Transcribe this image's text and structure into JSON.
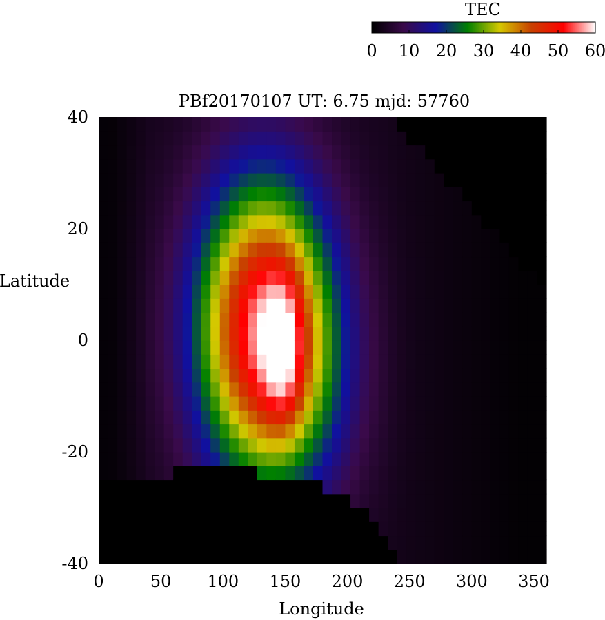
{
  "chart_data": {
    "type": "heatmap",
    "title": "PBf20170107  UT: 6.75  mjd: 57760",
    "xlabel": "Longitude",
    "ylabel": "Latitude",
    "xlim": [
      0,
      360
    ],
    "ylim": [
      -40,
      40
    ],
    "x_ticks": [
      "0",
      "50",
      "100",
      "150",
      "200",
      "250",
      "300",
      "350"
    ],
    "y_ticks": [
      "40",
      "20",
      "0",
      "-20",
      "-40"
    ],
    "colorbar": {
      "label": "TEC",
      "range": [
        0,
        60
      ],
      "ticks": [
        "0",
        "10",
        "20",
        "30",
        "40",
        "50",
        "60"
      ],
      "colormap": [
        "#000000",
        "#3a0a4a",
        "#1010a0",
        "#008000",
        "#d4c800",
        "#c84000",
        "#ff0000",
        "#ffffff"
      ]
    },
    "grid": false,
    "legend": "top-right colorbar",
    "field": {
      "description_units": "TEC",
      "background": 3,
      "blobs": [
        {
          "lon": 132,
          "lat": 2,
          "amp": 52,
          "sigma_lon": 38,
          "sigma_lat": 19
        },
        {
          "lon": 148,
          "lat": -2,
          "amp": 14,
          "sigma_lon": 11,
          "sigma_lat": 9
        },
        {
          "lon": 175,
          "lat": -8,
          "amp": 6,
          "sigma_lon": 30,
          "sigma_lat": 16
        }
      ],
      "missing_region": {
        "north_boundary_lat": 39,
        "north_boundary_lon": [
          238,
          360
        ],
        "south_boundary": [
          [
            0,
            -26
          ],
          [
            80,
            -23
          ],
          [
            140,
            -24
          ],
          [
            175,
            -26
          ],
          [
            210,
            -30
          ],
          [
            245,
            -40
          ]
        ]
      }
    }
  }
}
